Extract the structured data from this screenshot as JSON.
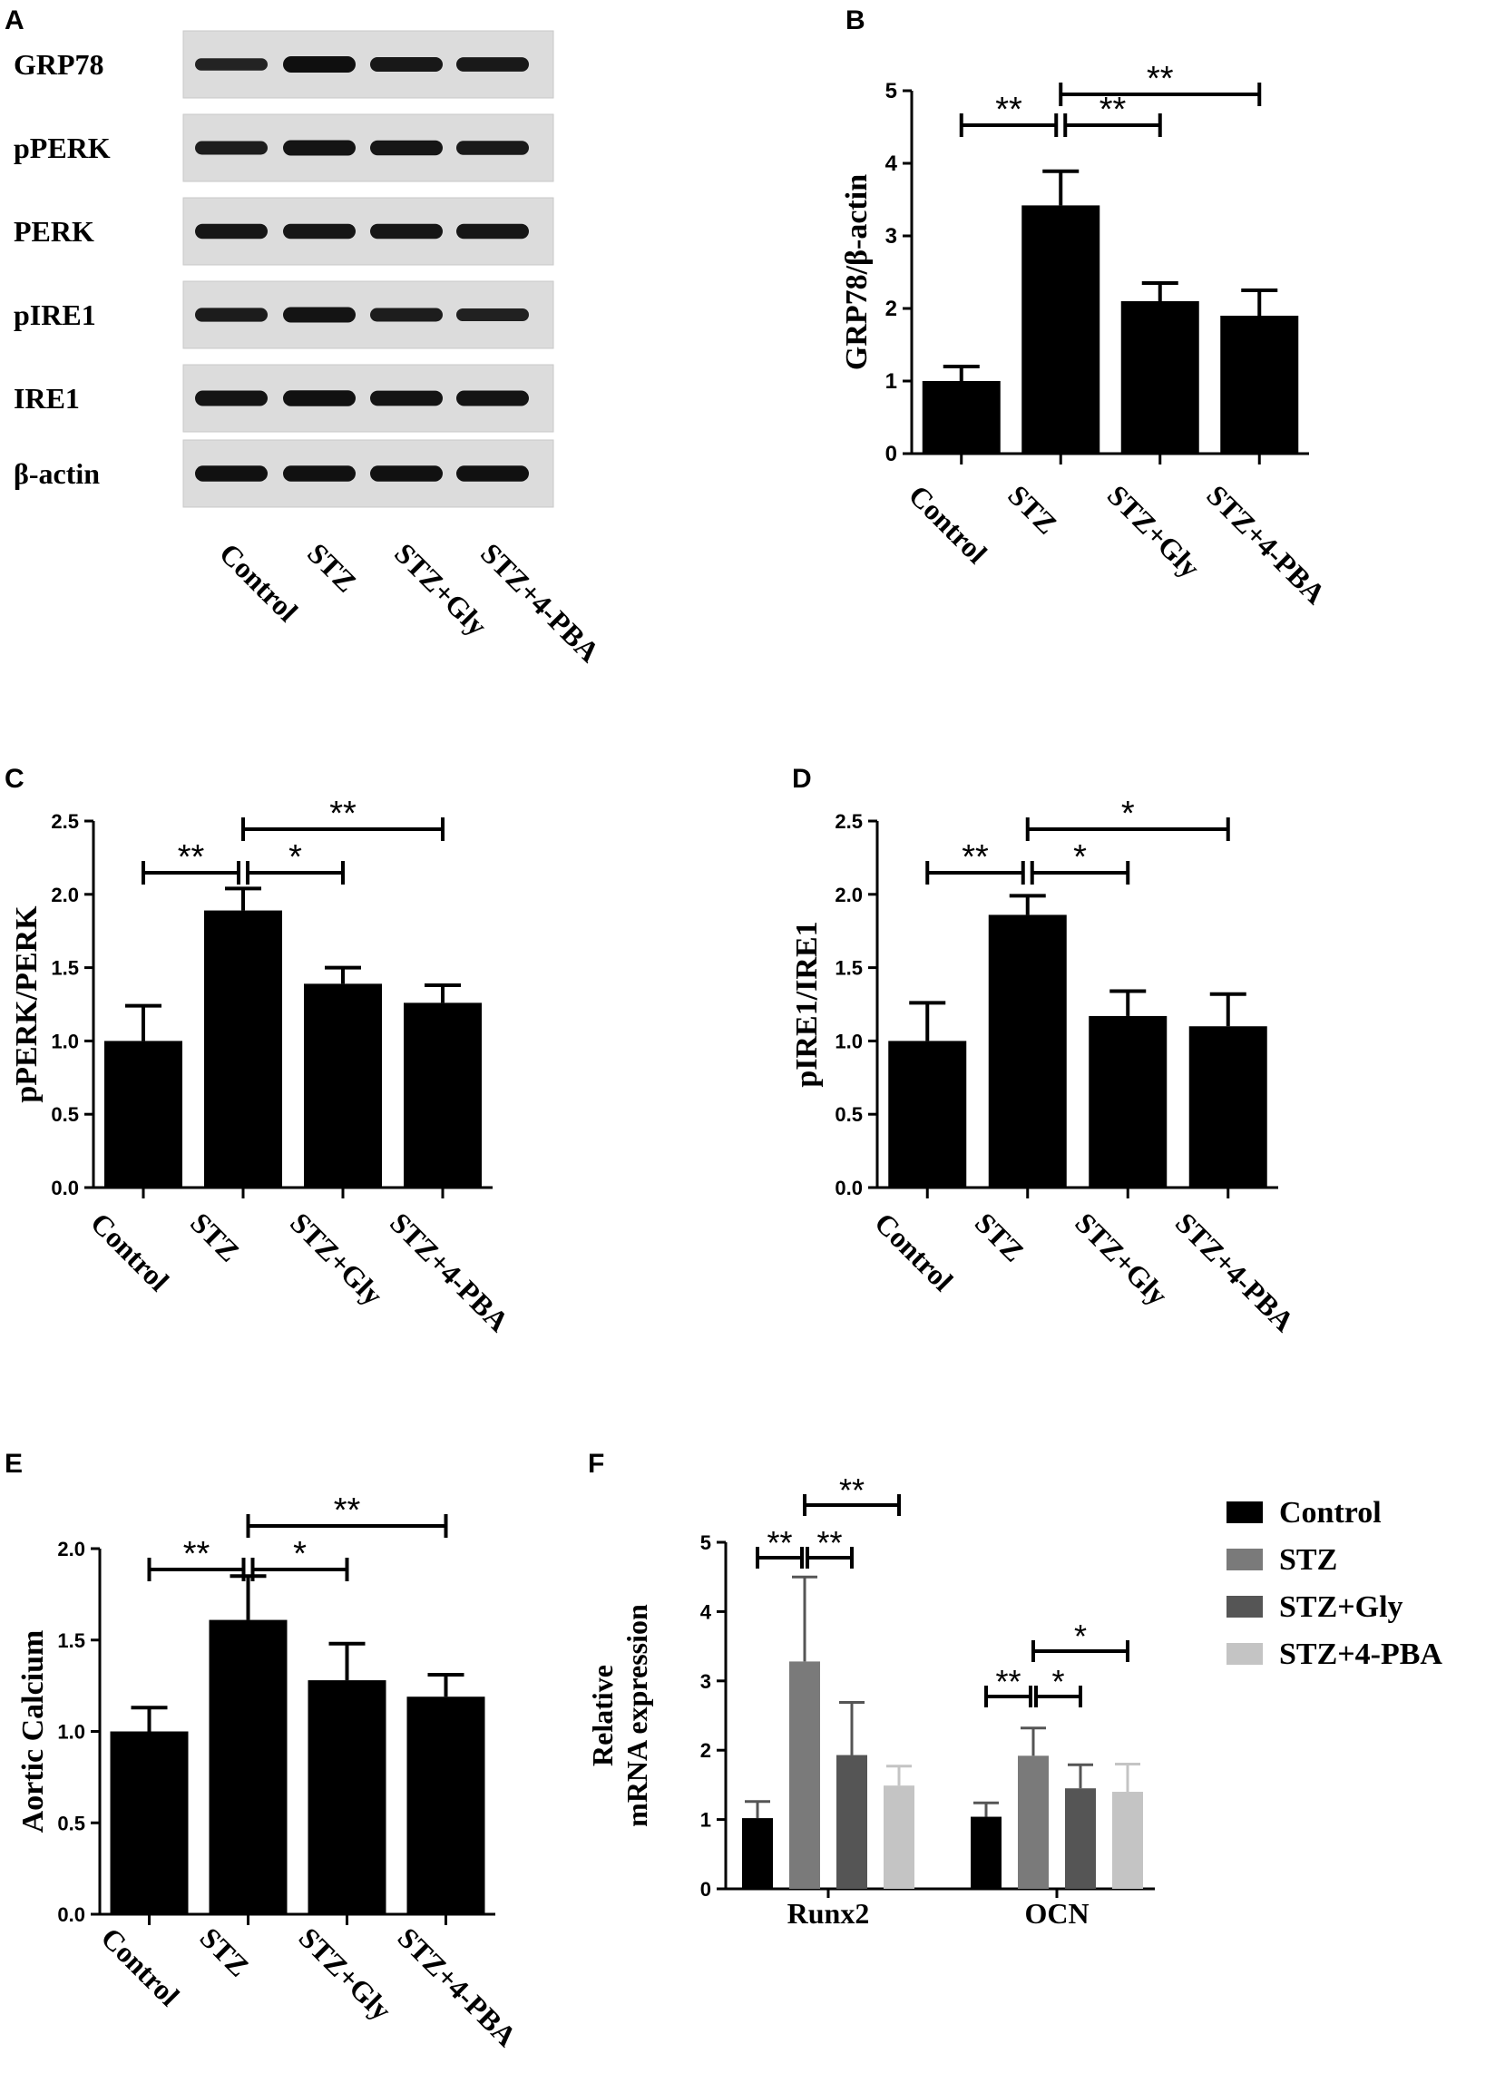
{
  "panels": {
    "a": {
      "letter": "A",
      "blot_labels": [
        "GRP78",
        "pPERK",
        "PERK",
        "pIRE1",
        "IRE1",
        "β-actin"
      ],
      "lane_labels": [
        "Control",
        "STZ",
        "STZ+Gly",
        "STZ+4-PBA"
      ],
      "band_intensity": [
        [
          0.55,
          1.0,
          0.8,
          0.78
        ],
        [
          0.7,
          0.9,
          0.85,
          0.75
        ],
        [
          0.85,
          0.85,
          0.85,
          0.85
        ],
        [
          0.72,
          0.9,
          0.7,
          0.6
        ],
        [
          0.9,
          0.95,
          0.88,
          0.9
        ],
        [
          0.95,
          0.95,
          0.95,
          0.95
        ]
      ]
    },
    "b": {
      "letter": "B"
    },
    "c": {
      "letter": "C"
    },
    "d": {
      "letter": "D"
    },
    "e": {
      "letter": "E"
    },
    "f": {
      "letter": "F"
    }
  },
  "chart_data": [
    {
      "id": "B",
      "type": "bar",
      "categories": [
        "Control",
        "STZ",
        "STZ+Gly",
        "STZ+4-PBA"
      ],
      "values": [
        1.0,
        3.42,
        2.1,
        1.9
      ],
      "errors": [
        0.2,
        0.47,
        0.25,
        0.35
      ],
      "ylabel": "GRP78/β-actin",
      "ylim": [
        0,
        5
      ],
      "yticks": [
        "0",
        "1",
        "2",
        "3",
        "4",
        "5"
      ],
      "bar_color": "#000000",
      "significance": [
        {
          "from": 0,
          "to": 1,
          "label": "**",
          "level": 0
        },
        {
          "from": 1,
          "to": 2,
          "label": "**",
          "level": 0
        },
        {
          "from": 1,
          "to": 3,
          "label": "**",
          "level": 1
        }
      ]
    },
    {
      "id": "C",
      "type": "bar",
      "categories": [
        "Control",
        "STZ",
        "STZ+Gly",
        "STZ+4-PBA"
      ],
      "values": [
        1.0,
        1.89,
        1.39,
        1.26
      ],
      "errors": [
        0.24,
        0.15,
        0.11,
        0.12
      ],
      "ylabel": "pPERK/PERK",
      "ylim": [
        0,
        2.5
      ],
      "yticks": [
        "0.0",
        "0.5",
        "1.0",
        "1.5",
        "2.0",
        "2.5"
      ],
      "bar_color": "#000000",
      "significance": [
        {
          "from": 0,
          "to": 1,
          "label": "**",
          "level": 0
        },
        {
          "from": 1,
          "to": 2,
          "label": "*",
          "level": 0
        },
        {
          "from": 1,
          "to": 3,
          "label": "**",
          "level": 1
        }
      ]
    },
    {
      "id": "D",
      "type": "bar",
      "categories": [
        "Control",
        "STZ",
        "STZ+Gly",
        "STZ+4-PBA"
      ],
      "values": [
        1.0,
        1.86,
        1.17,
        1.1
      ],
      "errors": [
        0.26,
        0.13,
        0.17,
        0.22
      ],
      "ylabel": "pIRE1/IRE1",
      "ylim": [
        0,
        2.5
      ],
      "yticks": [
        "0.0",
        "0.5",
        "1.0",
        "1.5",
        "2.0",
        "2.5"
      ],
      "bar_color": "#000000",
      "significance": [
        {
          "from": 0,
          "to": 1,
          "label": "**",
          "level": 0
        },
        {
          "from": 1,
          "to": 2,
          "label": "*",
          "level": 0
        },
        {
          "from": 1,
          "to": 3,
          "label": "*",
          "level": 1
        }
      ]
    },
    {
      "id": "E",
      "type": "bar",
      "categories": [
        "Control",
        "STZ",
        "STZ+Gly",
        "STZ+4-PBA"
      ],
      "values": [
        1.0,
        1.61,
        1.28,
        1.19
      ],
      "errors": [
        0.13,
        0.24,
        0.2,
        0.12
      ],
      "ylabel": "Aortic Calcium",
      "ylim": [
        0,
        2.0
      ],
      "yticks": [
        "0.0",
        "0.5",
        "1.0",
        "1.5",
        "2.0"
      ],
      "bar_color": "#000000",
      "significance": [
        {
          "from": 0,
          "to": 1,
          "label": "**",
          "level": 0
        },
        {
          "from": 1,
          "to": 2,
          "label": "*",
          "level": 0
        },
        {
          "from": 1,
          "to": 3,
          "label": "**",
          "level": 1
        }
      ]
    },
    {
      "id": "F",
      "type": "bar",
      "categories": [
        "Runx2",
        "OCN"
      ],
      "ylabel_lines": [
        "Relative",
        "mRNA expression"
      ],
      "ylim": [
        0,
        5
      ],
      "yticks": [
        "0",
        "1",
        "2",
        "3",
        "4",
        "5"
      ],
      "series": [
        {
          "name": "Control",
          "color": "#000000",
          "values": [
            1.02,
            1.04
          ],
          "errors": [
            0.24,
            0.2
          ]
        },
        {
          "name": "STZ",
          "color": "#7a7a7a",
          "values": [
            3.28,
            1.92
          ],
          "errors": [
            1.22,
            0.4
          ]
        },
        {
          "name": "STZ+Gly",
          "color": "#555555",
          "values": [
            1.93,
            1.45
          ],
          "errors": [
            0.76,
            0.34
          ]
        },
        {
          "name": "STZ+4-PBA",
          "color": "#c4c4c4",
          "values": [
            1.49,
            1.4
          ],
          "errors": [
            0.28,
            0.4
          ]
        }
      ],
      "legend_position": "right",
      "significance": [
        {
          "group": 0,
          "from": 0,
          "to": 1,
          "label": "**",
          "level": 0
        },
        {
          "group": 0,
          "from": 1,
          "to": 2,
          "label": "**",
          "level": 0
        },
        {
          "group": 0,
          "from": 1,
          "to": 3,
          "label": "**",
          "level": 1
        },
        {
          "group": 1,
          "from": 0,
          "to": 1,
          "label": "**",
          "level": 0
        },
        {
          "group": 1,
          "from": 1,
          "to": 2,
          "label": "*",
          "level": 0
        },
        {
          "group": 1,
          "from": 1,
          "to": 3,
          "label": "*",
          "level": 1
        }
      ]
    }
  ]
}
